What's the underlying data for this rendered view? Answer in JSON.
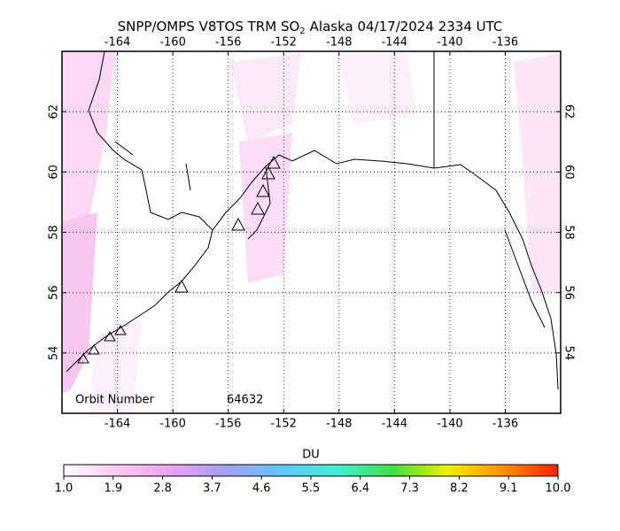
{
  "map": {
    "title_prefix": "SNPP/OMPS V8TOS TRM SO",
    "title_subscript": "2",
    "title_suffix": "Alaska 04/17/2024 2334 UTC",
    "xlim": [
      -168,
      -132
    ],
    "ylim": [
      52,
      64
    ],
    "lon_ticks": [
      -164,
      -160,
      -156,
      -152,
      -148,
      -144,
      -140,
      -136
    ],
    "lat_ticks": [
      54,
      56,
      58,
      60,
      62
    ],
    "grid": true,
    "orbit_label": "Orbit Number",
    "orbit_number": 64632
  },
  "colorbar": {
    "label": "DU",
    "lim": [
      1,
      10
    ],
    "colors": [
      "#ffffff",
      "#ffc8f0",
      "#e8a0f0",
      "#a0a0f0",
      "#60c8ff",
      "#40f0d0",
      "#40e040",
      "#f0f000",
      "#ff9000",
      "#ff2000"
    ],
    "ticks": [
      {
        "value": 1.0,
        "label": "1.0"
      },
      {
        "value": 1.9,
        "label": "1.9"
      },
      {
        "value": 2.8,
        "label": "2.8"
      },
      {
        "value": 3.7,
        "label": "3.7"
      },
      {
        "value": 4.6,
        "label": "4.6"
      },
      {
        "value": 5.5,
        "label": "5.5"
      },
      {
        "value": 6.4,
        "label": "6.4"
      },
      {
        "value": 7.3,
        "label": "7.3"
      },
      {
        "value": 8.2,
        "label": "8.2"
      },
      {
        "value": 9.1,
        "label": "9.1"
      },
      {
        "value": 10.0,
        "label": "10.0"
      }
    ]
  }
}
